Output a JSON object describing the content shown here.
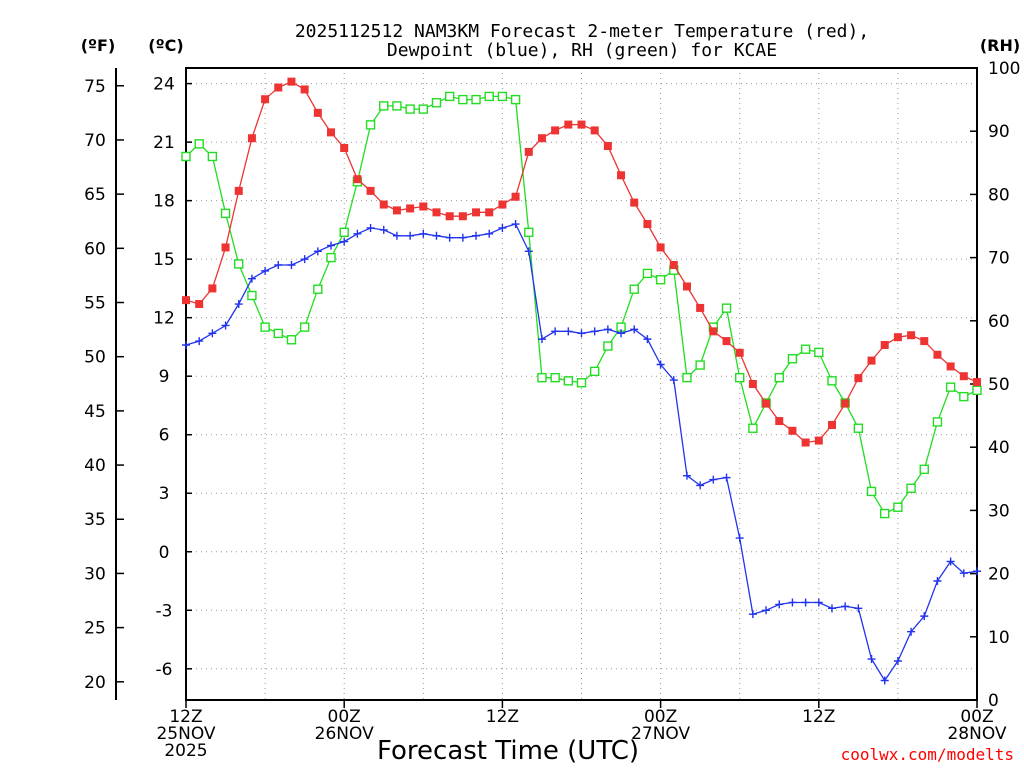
{
  "chart_data": {
    "type": "line",
    "title_line1": "2025112512 NAM3KM Forecast 2-meter Temperature (red),",
    "title_line2": "Dewpoint (blue), RH (green) for KCAE",
    "xlabel": "Forecast Time (UTC)",
    "watermark": "coolwx.com/modelts",
    "unit_f": "(ºF)",
    "unit_c": "(ºC)",
    "unit_rh": "(RH)",
    "x_range_hours": [
      0,
      60
    ],
    "x_ticks": [
      {
        "hour": 0,
        "line1": "12Z",
        "line2": "25NOV",
        "line3": "2025"
      },
      {
        "hour": 12,
        "line1": "00Z",
        "line2": "26NOV",
        "line3": ""
      },
      {
        "hour": 24,
        "line1": "12Z",
        "line2": "",
        "line3": ""
      },
      {
        "hour": 36,
        "line1": "00Z",
        "line2": "27NOV",
        "line3": ""
      },
      {
        "hour": 48,
        "line1": "12Z",
        "line2": "",
        "line3": ""
      },
      {
        "hour": 60,
        "line1": "00Z",
        "line2": "28NOV",
        "line3": ""
      }
    ],
    "celsius_axis": {
      "range": [
        -7.6,
        24.8
      ],
      "ticks": [
        "24",
        "21",
        "18",
        "15",
        "12",
        "9",
        "6",
        "3",
        "0",
        "-3",
        "-6"
      ]
    },
    "fahrenheit_axis": {
      "ticks": [
        "75",
        "70",
        "65",
        "60",
        "55",
        "50",
        "45",
        "40",
        "35",
        "30",
        "25",
        "20"
      ]
    },
    "rh_axis": {
      "range": [
        0,
        100
      ],
      "ticks": [
        "100",
        "90",
        "80",
        "70",
        "60",
        "50",
        "40",
        "30",
        "20",
        "10",
        "0"
      ]
    },
    "series": [
      {
        "name": "Temperature",
        "unit": "C",
        "color": "#ee3333",
        "marker": "filled-square",
        "hours": [
          0,
          1,
          2,
          3,
          4,
          5,
          6,
          7,
          8,
          9,
          10,
          11,
          12,
          13,
          14,
          15,
          16,
          17,
          18,
          19,
          20,
          21,
          22,
          23,
          24,
          25,
          26,
          27,
          28,
          29,
          30,
          31,
          32,
          33,
          34,
          35,
          36,
          37,
          38,
          39,
          40,
          41,
          42,
          43,
          44,
          45,
          46,
          47,
          48,
          49,
          50,
          51,
          52,
          53,
          54,
          55,
          56,
          57,
          58,
          59,
          60
        ],
        "values": [
          12.9,
          12.7,
          13.5,
          15.6,
          18.5,
          21.2,
          23.2,
          23.8,
          24.1,
          23.7,
          22.5,
          21.5,
          20.7,
          19.1,
          18.5,
          17.8,
          17.5,
          17.6,
          17.7,
          17.4,
          17.2,
          17.2,
          17.4,
          17.4,
          17.8,
          18.2,
          20.5,
          21.2,
          21.6,
          21.9,
          21.9,
          21.6,
          20.8,
          19.3,
          17.9,
          16.8,
          15.6,
          14.7,
          13.6,
          12.5,
          11.3,
          10.8,
          10.2,
          8.6,
          7.6,
          6.7,
          6.2,
          5.6,
          5.7,
          6.5,
          7.6,
          8.9,
          9.8,
          10.6,
          11.0,
          11.1,
          10.8,
          10.1,
          9.5,
          9.0,
          8.7
        ]
      },
      {
        "name": "Dewpoint",
        "unit": "C",
        "color": "#2233ee",
        "marker": "plus",
        "hours": [
          0,
          1,
          2,
          3,
          4,
          5,
          6,
          7,
          8,
          9,
          10,
          11,
          12,
          13,
          14,
          15,
          16,
          17,
          18,
          19,
          20,
          21,
          22,
          23,
          24,
          25,
          26,
          27,
          28,
          29,
          30,
          31,
          32,
          33,
          34,
          35,
          36,
          37,
          38,
          39,
          40,
          41,
          42,
          43,
          44,
          45,
          46,
          47,
          48,
          49,
          50,
          51,
          52,
          53,
          54,
          55,
          56,
          57,
          58,
          59,
          60
        ],
        "values": [
          10.6,
          10.8,
          11.2,
          11.6,
          12.7,
          14.0,
          14.4,
          14.7,
          14.7,
          15.0,
          15.4,
          15.7,
          15.9,
          16.3,
          16.6,
          16.5,
          16.2,
          16.2,
          16.3,
          16.2,
          16.1,
          16.1,
          16.2,
          16.3,
          16.6,
          16.8,
          15.4,
          10.9,
          11.3,
          11.3,
          11.2,
          11.3,
          11.4,
          11.2,
          11.4,
          10.9,
          9.6,
          8.8,
          3.9,
          3.4,
          3.7,
          3.8,
          0.7,
          -3.2,
          -3.0,
          -2.7,
          -2.6,
          -2.6,
          -2.6,
          -2.9,
          -2.8,
          -2.9,
          -5.5,
          -6.6,
          -5.6,
          -4.1,
          -3.3,
          -1.5,
          -0.5,
          -1.1,
          -1.0
        ]
      },
      {
        "name": "RH",
        "unit": "%",
        "color": "#22dd22",
        "marker": "open-square",
        "hours": [
          0,
          1,
          2,
          3,
          4,
          5,
          6,
          7,
          8,
          9,
          10,
          11,
          12,
          13,
          14,
          15,
          16,
          17,
          18,
          19,
          20,
          21,
          22,
          23,
          24,
          25,
          26,
          27,
          28,
          29,
          30,
          31,
          32,
          33,
          34,
          35,
          36,
          37,
          38,
          39,
          40,
          41,
          42,
          43,
          44,
          45,
          46,
          47,
          48,
          49,
          50,
          51,
          52,
          53,
          54,
          55,
          56,
          57,
          58,
          59,
          60
        ],
        "values": [
          86,
          88,
          86,
          77,
          69,
          64,
          59,
          58,
          57,
          59,
          65,
          70,
          74,
          82,
          91,
          94,
          94,
          93.5,
          93.5,
          94.5,
          95.5,
          95,
          95,
          95.5,
          95.5,
          95,
          74,
          51,
          51,
          50.5,
          50.2,
          52,
          56,
          59,
          65,
          67.5,
          66.5,
          68,
          51,
          53,
          59,
          62,
          51,
          43,
          47,
          51,
          54,
          55.5,
          55,
          50.5,
          47,
          43,
          33,
          29.5,
          30.5,
          33.5,
          36.5,
          44,
          49.5,
          48,
          49
        ]
      }
    ]
  }
}
